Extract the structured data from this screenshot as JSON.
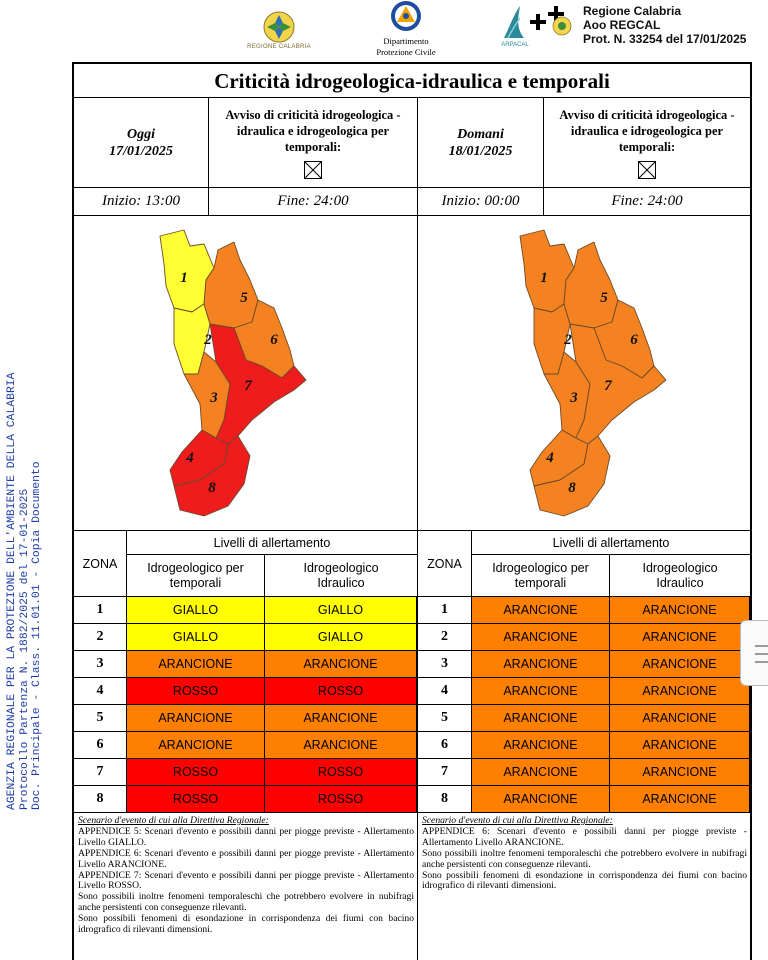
{
  "header": {
    "left_logo_caption": "REGIONE CALABRIA",
    "dpc_line1": "Dipartimento",
    "dpc_line2": "Protezione Civile",
    "arpa_caption": "ARPACAL",
    "protocol_line1": "Regione Calabria",
    "protocol_line2": "Aoo REGCAL",
    "protocol_line3": "Prot. N. 33254 del 17/01/2025"
  },
  "side_watermark": {
    "line1": "AGENZIA REGIONALE PER LA PROTEZIONE DELL'AMBIENTE DELLA CALABRIA",
    "line2": "Protocollo Partenza N. 1882/2025 del 17-01-2025",
    "line3": "Doc. Principale - Class. 11.01.01 - Copia Documento"
  },
  "title": "Criticità idrogeologica-idraulica e temporali",
  "today": {
    "label": "Oggi",
    "date": "17/01/2025",
    "notice": [
      "Avviso di criticità idrogeologica -",
      "idraulica e idrogeologica per",
      "temporali:"
    ],
    "start": "Inizio: 13:00",
    "end": "Fine: 24:00"
  },
  "tomorrow": {
    "label": "Domani",
    "date": "18/01/2025",
    "notice": [
      "Avviso di criticità idrogeologica -",
      "idraulica e idrogeologica per",
      "temporali:"
    ],
    "start": "Inizio: 00:00",
    "end": "Fine: 24:00"
  },
  "colors": {
    "giallo": "#ffff00",
    "arancione": "#ff8000",
    "rosso": "#ff0000",
    "map_yellow": "#ffff33",
    "map_orange": "#f58220",
    "map_red": "#ee1c1c"
  },
  "table_labels": {
    "levels_title": "Livelli di allertamento",
    "zone_header": "ZONA",
    "col1": [
      "Idrogeologico per",
      "temporali"
    ],
    "col2": [
      "Idrogeologico",
      "Idraulico"
    ]
  },
  "today_zones": [
    {
      "zone": "1",
      "temporali": "GIALLO",
      "idraulico": "GIALLO",
      "level": "giallo"
    },
    {
      "zone": "2",
      "temporali": "GIALLO",
      "idraulico": "GIALLO",
      "level": "giallo"
    },
    {
      "zone": "3",
      "temporali": "ARANCIONE",
      "idraulico": "ARANCIONE",
      "level": "arancione"
    },
    {
      "zone": "4",
      "temporali": "ROSSO",
      "idraulico": "ROSSO",
      "level": "rosso"
    },
    {
      "zone": "5",
      "temporali": "ARANCIONE",
      "idraulico": "ARANCIONE",
      "level": "arancione"
    },
    {
      "zone": "6",
      "temporali": "ARANCIONE",
      "idraulico": "ARANCIONE",
      "level": "arancione"
    },
    {
      "zone": "7",
      "temporali": "ROSSO",
      "idraulico": "ROSSO",
      "level": "rosso"
    },
    {
      "zone": "8",
      "temporali": "ROSSO",
      "idraulico": "ROSSO",
      "level": "rosso"
    }
  ],
  "tomorrow_zones": [
    {
      "zone": "1",
      "temporali": "ARANCIONE",
      "idraulico": "ARANCIONE",
      "level": "arancione"
    },
    {
      "zone": "2",
      "temporali": "ARANCIONE",
      "idraulico": "ARANCIONE",
      "level": "arancione"
    },
    {
      "zone": "3",
      "temporali": "ARANCIONE",
      "idraulico": "ARANCIONE",
      "level": "arancione"
    },
    {
      "zone": "4",
      "temporali": "ARANCIONE",
      "idraulico": "ARANCIONE",
      "level": "arancione"
    },
    {
      "zone": "5",
      "temporali": "ARANCIONE",
      "idraulico": "ARANCIONE",
      "level": "arancione"
    },
    {
      "zone": "6",
      "temporali": "ARANCIONE",
      "idraulico": "ARANCIONE",
      "level": "arancione"
    },
    {
      "zone": "7",
      "temporali": "ARANCIONE",
      "idraulico": "ARANCIONE",
      "level": "arancione"
    },
    {
      "zone": "8",
      "temporali": "ARANCIONE",
      "idraulico": "ARANCIONE",
      "level": "arancione"
    }
  ],
  "scenario_today": {
    "heading": "Scenario d'evento di cui alla Direttiva Regionale:",
    "lines": [
      "APPENDICE 5: Scenari d'evento e possibili danni per piogge previste - Allertamento Livello GIALLO.",
      "APPENDICE 6: Scenari d'evento e possibili danni per piogge previste - Allertamento Livello ARANCIONE.",
      "APPENDICE 7: Scenari d'evento e possibili danni per piogge previste - Allertamento Livello ROSSO.",
      "Sono possibili inoltre fenomeni temporaleschi che potrebbero evolvere in nubifragi anche persistenti con conseguenze rilevanti.",
      "Sono possibili fenomeni di esondazione in corrispondenza dei fiumi con bacino idrografico di rilevanti dimensioni."
    ]
  },
  "scenario_tomorrow": {
    "heading": "Scenario d'evento di cui alla Direttiva Regionale:",
    "lines": [
      "APPENDICE 6: Scenari d'evento e possibili danni per piogge previste - Allertamento Livello ARANCIONE.",
      "Sono possibili inoltre fenomeni temporaleschi che potrebbero evolvere in nubifragi anche persistenti con conseguenze rilevanti.",
      "Sono possibili fenomeni di esondazione in corrispondenza dei fiumi con bacino idrografico di rilevanti dimensioni."
    ]
  },
  "map_labels": [
    "1",
    "2",
    "3",
    "4",
    "5",
    "6",
    "7",
    "8"
  ]
}
